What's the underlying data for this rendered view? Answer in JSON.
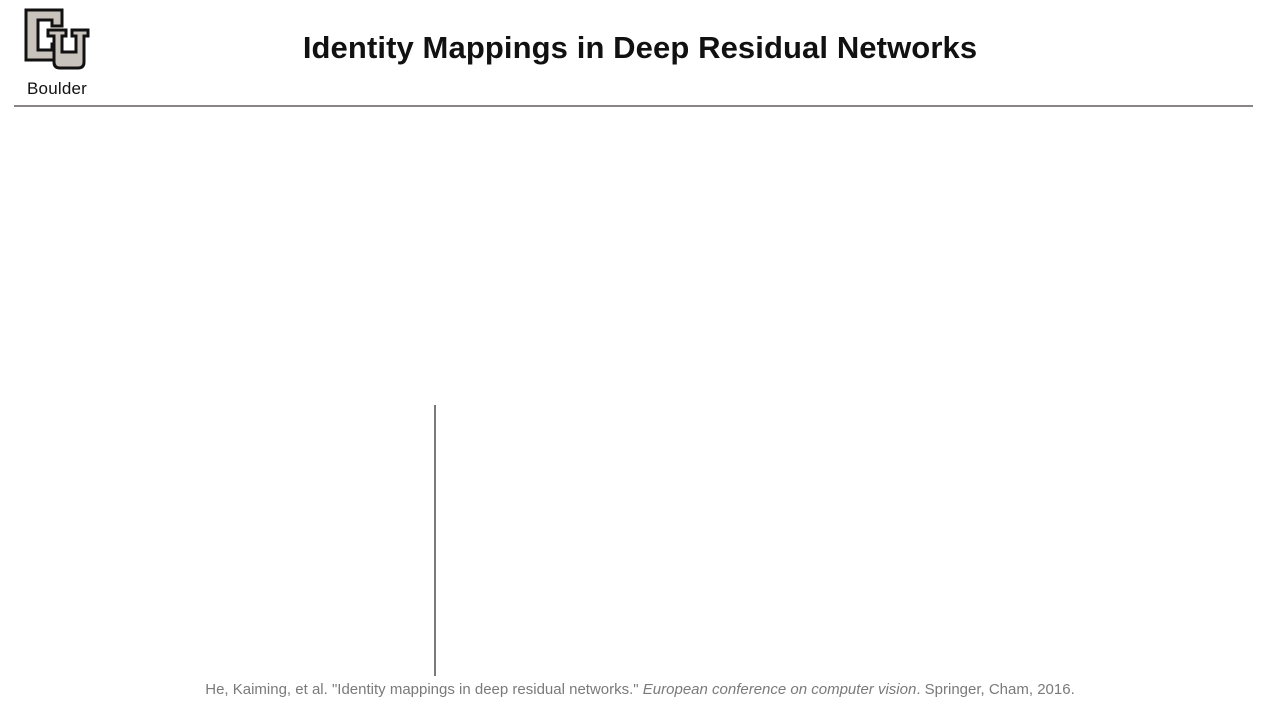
{
  "header": {
    "logo_text": "Boulder",
    "title": "Identity Mappings in Deep Residual Networks"
  },
  "footer": {
    "citation_authors": "He, Kaiming, et al.",
    "citation_title": "\"Identity mappings in deep residual networks.\"",
    "citation_venue": "European conference on computer vision",
    "citation_publisher": ". Springer, Cham, 2016."
  },
  "colors": {
    "title": "#111111",
    "rule": "#8a8585",
    "citation": "#7a7a7a"
  }
}
